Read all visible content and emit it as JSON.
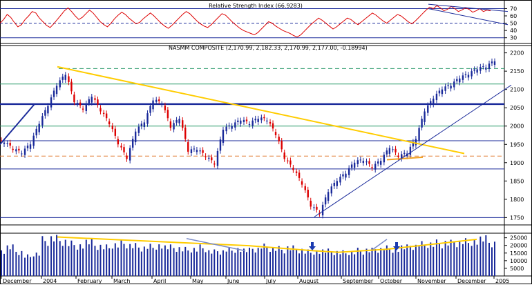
{
  "chart_data": [
    {
      "panel": "rsi",
      "type": "line",
      "title": "Relative Strength Index (66.9283)",
      "y_ticks": [
        30,
        40,
        50,
        60,
        70
      ],
      "ylim": [
        25,
        78
      ],
      "reference_levels": [
        30,
        50,
        70
      ],
      "series": [
        {
          "values": [
            50,
            55,
            62,
            58,
            51,
            45,
            48,
            55,
            60,
            66,
            64,
            57,
            52,
            47,
            44,
            49,
            55,
            61,
            67,
            71,
            66,
            60,
            55,
            58,
            63,
            68,
            64,
            58,
            52,
            48,
            45,
            50,
            56,
            61,
            65,
            62,
            57,
            53,
            49,
            51,
            56,
            60,
            64,
            60,
            55,
            50,
            46,
            43,
            47,
            52,
            57,
            62,
            66,
            63,
            58,
            53,
            49,
            46,
            44,
            48,
            53,
            58,
            63,
            61,
            56,
            51,
            47,
            43,
            40,
            38,
            36,
            34,
            37,
            42,
            47,
            52,
            50,
            46,
            43,
            40,
            38,
            36,
            33,
            31,
            34,
            39,
            44,
            49,
            53,
            57,
            54,
            50,
            46,
            42,
            45,
            49,
            53,
            57,
            55,
            51,
            48,
            52,
            56,
            60,
            64,
            61,
            57,
            53,
            50,
            54,
            58,
            62,
            60,
            56,
            52,
            49,
            53,
            58,
            63,
            68,
            72,
            70,
            74,
            71,
            67,
            69,
            73,
            70,
            66,
            68,
            71,
            69,
            65,
            67,
            70,
            66,
            68,
            67
          ]
        }
      ],
      "colors": {
        "rsi_line": "#dd0000",
        "trend_lines": "#1a2a9a"
      }
    },
    {
      "panel": "price",
      "type": "candlestick",
      "title": "NASDAQ COMPOSITE",
      "header": "NASMM COMPOSITE (2,170.99, 2,182.33, 2,170.99, 2,177.00, -0.18994)",
      "y_ticks": [
        1750,
        1800,
        1850,
        1900,
        1950,
        2000,
        2050,
        2100,
        2150,
        2200
      ],
      "ylim": [
        1730,
        2220
      ],
      "x_labels": [
        "December",
        "2004",
        "February",
        "March",
        "April",
        "May",
        "June",
        "July",
        "August",
        "September",
        "October",
        "November",
        "December",
        "2005"
      ],
      "x": [
        "2003-12-01",
        "2003-12-08",
        "2003-12-15",
        "2003-12-22",
        "2003-12-29",
        "2004-01-05",
        "2004-01-12",
        "2004-01-19",
        "2004-01-26",
        "2004-02-02",
        "2004-02-09",
        "2004-02-16",
        "2004-02-23",
        "2004-03-01",
        "2004-03-08",
        "2004-03-15",
        "2004-03-22",
        "2004-03-29",
        "2004-04-05",
        "2004-04-12",
        "2004-04-19",
        "2004-04-26",
        "2004-05-03",
        "2004-05-10",
        "2004-05-17",
        "2004-05-24",
        "2004-05-31",
        "2004-06-07",
        "2004-06-14",
        "2004-06-21",
        "2004-06-28",
        "2004-07-05",
        "2004-07-12",
        "2004-07-19",
        "2004-07-26",
        "2004-08-02",
        "2004-08-09",
        "2004-08-16",
        "2004-08-23",
        "2004-08-30",
        "2004-09-06",
        "2004-09-13",
        "2004-09-20",
        "2004-09-27",
        "2004-10-04",
        "2004-10-11",
        "2004-10-18",
        "2004-10-25",
        "2004-11-01",
        "2004-11-08",
        "2004-11-15",
        "2004-11-22",
        "2004-11-29",
        "2004-12-06",
        "2004-12-13",
        "2004-12-20",
        "2004-12-27"
      ],
      "close": [
        1955,
        1935,
        1925,
        1950,
        2006,
        2055,
        2110,
        2140,
        2065,
        2045,
        2080,
        2040,
        2005,
        1950,
        1910,
        1985,
        2010,
        2070,
        2060,
        1995,
        2020,
        1930,
        1935,
        1915,
        1895,
        1990,
        2000,
        2015,
        2005,
        2020,
        2015,
        1975,
        1910,
        1880,
        1840,
        1780,
        1760,
        1820,
        1850,
        1870,
        1900,
        1905,
        1885,
        1905,
        1940,
        1915,
        1925,
        1965,
        2040,
        2075,
        2100,
        2110,
        2130,
        2140,
        2155,
        2160,
        2177
      ],
      "horizontal_levels": [
        1750,
        1883,
        1918,
        1960,
        2000,
        2060,
        2115,
        2157
      ],
      "colors": {
        "up": "#1a2a9a",
        "down": "#dd0000",
        "trend_down": "#ffcc00",
        "trend_up": "#1a2a9a"
      }
    },
    {
      "panel": "volume",
      "type": "bar",
      "y_ticks": [
        5000,
        10000,
        15000,
        20000,
        25000
      ],
      "ylim": [
        0,
        28000
      ],
      "values": [
        17000,
        19000,
        16000,
        13000,
        15000,
        24000,
        25500,
        24000,
        22000,
        21000,
        22500,
        20000,
        19000,
        21000,
        22000,
        20500,
        19500,
        20000,
        21000,
        19000,
        18500,
        17500,
        18000,
        19000,
        16500,
        17000,
        18000,
        18500,
        17000,
        18000,
        19500,
        18500,
        18000,
        19000,
        18000,
        16500,
        17000,
        16500,
        16000,
        15500,
        16000,
        17000,
        17500,
        18500,
        19000,
        18500,
        19000,
        20000,
        21000,
        21500,
        22000,
        22500,
        23000,
        23500,
        24000,
        24500,
        22000
      ],
      "colors": {
        "bars": "#1a2a9a",
        "trend": "#ffcc00",
        "secondary_trend": "#7a8ac8",
        "arrows": "#1a3ab0"
      }
    }
  ]
}
